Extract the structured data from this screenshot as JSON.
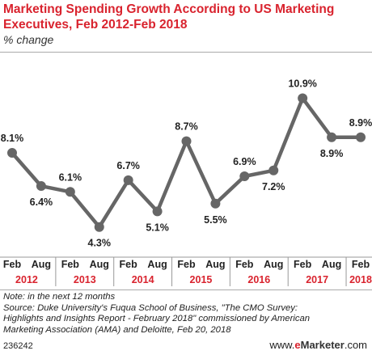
{
  "header": {
    "title": "Marketing Spending Growth According to US Marketing Executives, Feb 2012-Feb 2018",
    "subtitle": "% change"
  },
  "chart_data": {
    "type": "line",
    "x": [
      "Feb 2012",
      "Aug 2012",
      "Feb 2013",
      "Aug 2013",
      "Feb 2014",
      "Aug 2014",
      "Feb 2015",
      "Aug 2015",
      "Feb 2016",
      "Aug 2016",
      "Feb 2017",
      "Aug 2017",
      "Feb 2018"
    ],
    "month_labels": [
      "Feb",
      "Aug",
      "Feb",
      "Aug",
      "Feb",
      "Aug",
      "Feb",
      "Aug",
      "Feb",
      "Aug",
      "Feb",
      "Aug",
      "Feb"
    ],
    "year_labels": [
      "2012",
      "2013",
      "2014",
      "2015",
      "2016",
      "2017",
      "2018"
    ],
    "values": [
      8.1,
      6.4,
      6.1,
      4.3,
      6.7,
      5.1,
      8.7,
      5.5,
      6.9,
      7.2,
      10.9,
      8.9,
      8.9
    ],
    "data_labels": [
      "8.1%",
      "6.4%",
      "6.1%",
      "4.3%",
      "6.7%",
      "5.1%",
      "8.7%",
      "5.5%",
      "6.9%",
      "7.2%",
      "10.9%",
      "8.9%",
      "8.9%"
    ],
    "label_position": [
      "above",
      "below",
      "above",
      "below",
      "above",
      "below",
      "above",
      "below",
      "above",
      "below",
      "above",
      "below",
      "above"
    ],
    "ylim": [
      3.5,
      12
    ],
    "line_color": "#666666",
    "year_label_color": "#d9232e",
    "grid": false
  },
  "notes": {
    "note": "Note: in the next 12 months",
    "source": [
      "Source: Duke University's Fuqua School of Business, \"The CMO Survey:",
      "Highlights and Insights Report - February 2018\" commissioned by American",
      "Marketing Association (AMA) and Deloitte, Feb 20, 2018"
    ]
  },
  "footer": {
    "code": "236242",
    "brand_prefix": "www.",
    "brand_e": "e",
    "brand_name": "Marketer",
    "brand_suffix": ".com"
  }
}
